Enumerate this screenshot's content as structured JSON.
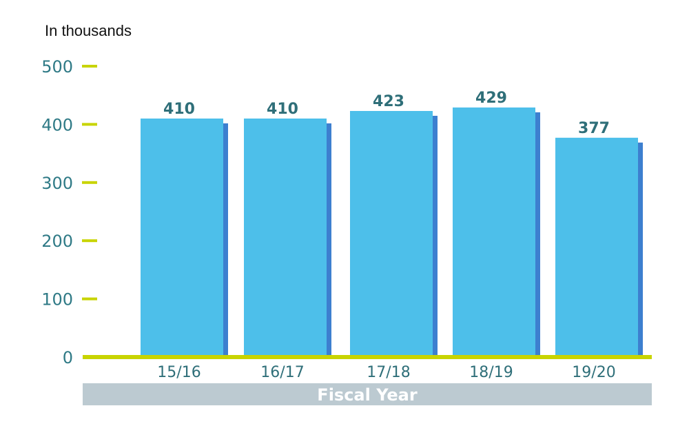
{
  "chart_data": {
    "type": "bar",
    "unit_label": "In thousands",
    "xlabel": "Fiscal Year",
    "ylabel": "",
    "categories": [
      "15/16",
      "16/17",
      "17/18",
      "18/19",
      "19/20"
    ],
    "values": [
      410,
      410,
      423,
      429,
      377
    ],
    "value_labels": [
      "410",
      "410",
      "423",
      "429",
      "377"
    ],
    "ylim": [
      0,
      500
    ],
    "yticks": [
      0,
      100,
      200,
      300,
      400,
      500
    ],
    "ytick_labels": [
      "0",
      "100",
      "200",
      "300",
      "400",
      "500"
    ],
    "grid": false,
    "legend": "none",
    "colors": {
      "bar_face": "#4dbfea",
      "bar_shadow": "#3d7fcf",
      "axis_line": "#c8d400",
      "tick_mark": "#c8d400",
      "tick_text": "#2f7a86",
      "value_text": "#2f6f79",
      "x_title_band": "#bccad1",
      "x_title_text": "#ffffff"
    }
  }
}
